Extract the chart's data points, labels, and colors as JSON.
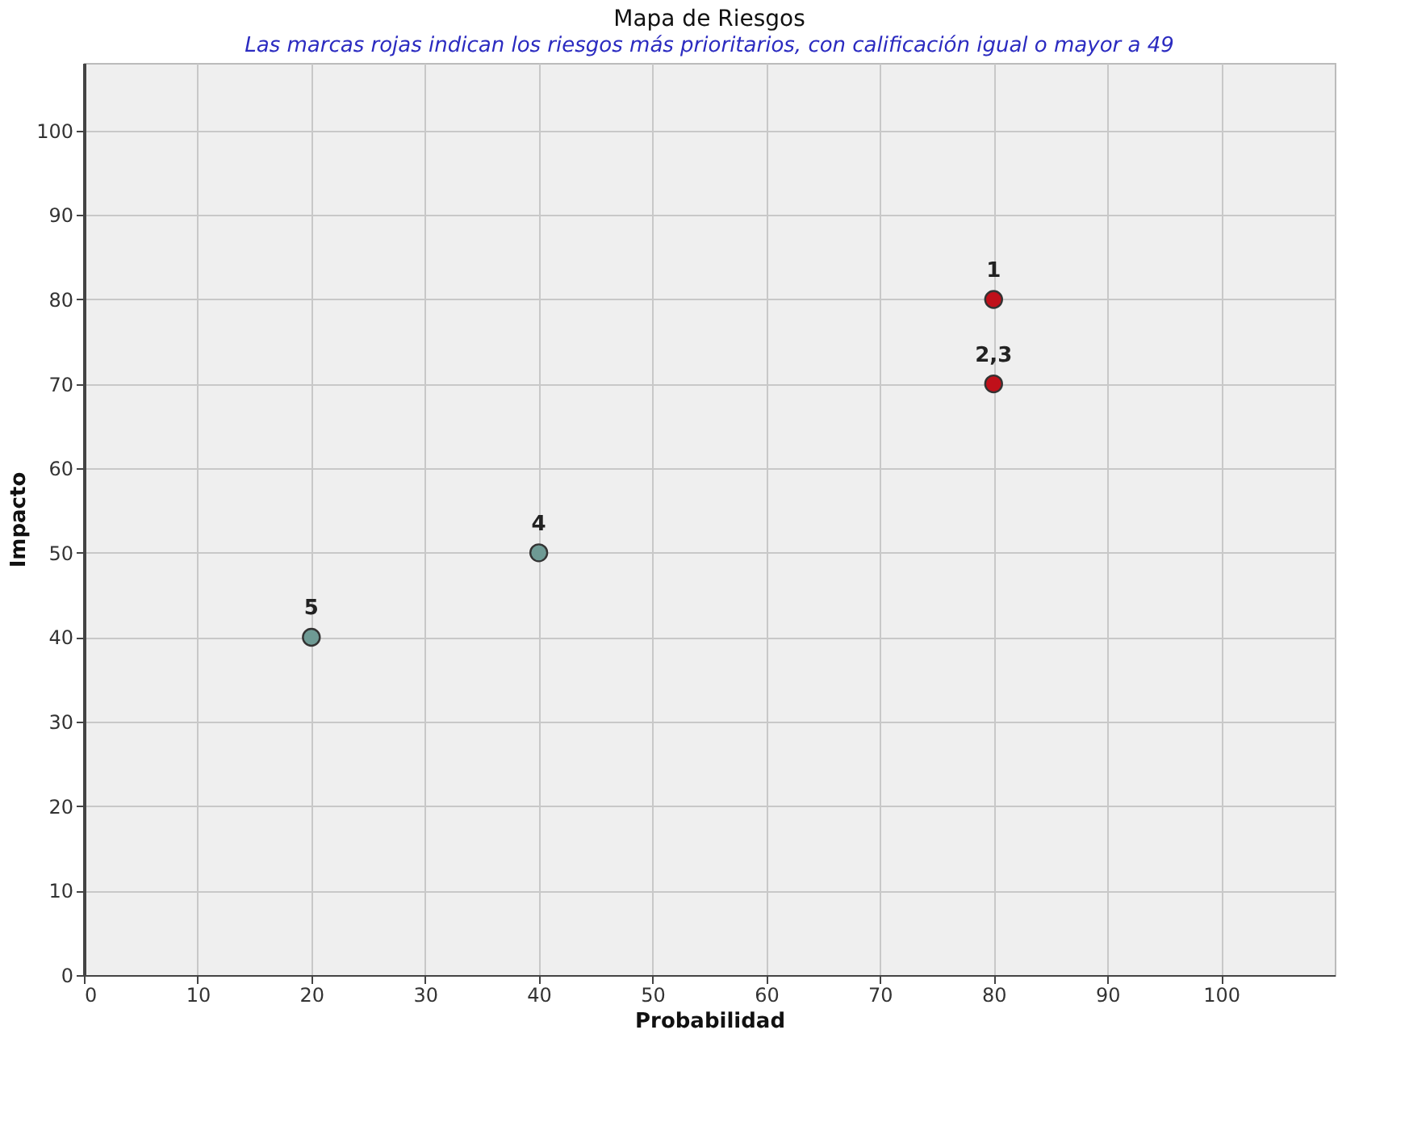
{
  "chart_data": {
    "type": "scatter",
    "title": "Mapa de Riesgos",
    "subtitle": "Las marcas rojas indican los riesgos más prioritarios, con calificación igual o mayor a 49",
    "xlabel": "Probabilidad",
    "ylabel": "Impacto",
    "series": [
      {
        "color": "#c0101a",
        "x": [
          80,
          80
        ],
        "values": [
          80,
          70
        ]
      },
      {
        "color": "#6e9a94",
        "x": [
          40,
          20
        ],
        "values": [
          50,
          40
        ]
      }
    ],
    "annotations": [
      {
        "text": "1",
        "x": 80,
        "y": 80
      },
      {
        "text": "2,3",
        "x": 80,
        "y": 70
      },
      {
        "text": "4",
        "x": 40,
        "y": 50
      },
      {
        "text": "5",
        "x": 20,
        "y": 40
      }
    ],
    "xlim": [
      0,
      110
    ],
    "ylim": [
      0,
      108
    ],
    "xticks": [
      0,
      10,
      20,
      30,
      40,
      50,
      60,
      70,
      80,
      90,
      100
    ],
    "yticks": [
      0,
      10,
      20,
      30,
      40,
      50,
      60,
      70,
      80,
      90,
      100
    ],
    "grid": true,
    "legend": false,
    "marker": "circle"
  }
}
